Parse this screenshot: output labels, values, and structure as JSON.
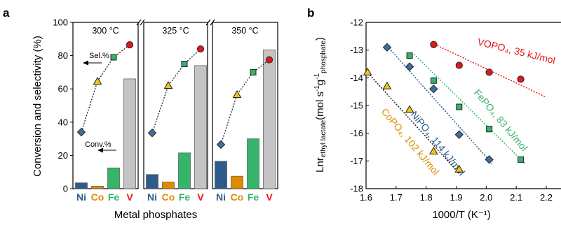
{
  "colors": {
    "Ni": "#2e5c8a",
    "Co": "#e08a00",
    "Fe": "#35b56a",
    "V": "#e8161b",
    "conversion_bar_V": "#c4c4c4",
    "selectivity_marker": "#1b1b1b",
    "ni_marker": "#3c6fa0",
    "co_marker": "#f2c318",
    "fe_marker": "#33b36a",
    "v_marker": "#e3171b",
    "vopo_line": "#e8161b",
    "fepo_line": "#35b56a",
    "nipo_line": "#2e5c8a",
    "copo_line": "#1b1b1b"
  },
  "panel_a": {
    "letter": "a",
    "ylabel": "Conversion and selectivity (%)",
    "xlabel": "Metal phosphates",
    "sel_annotation": "Sel.%",
    "conv_annotation": "Conv.%"
  },
  "panel_b": {
    "letter": "b",
    "xlabel": "1000/T (K⁻¹)"
  },
  "chart_data": [
    {
      "type": "bar",
      "panel": "a",
      "categories": [
        "Ni",
        "Co",
        "Fe",
        "V"
      ],
      "groups": [
        "300 °C",
        "325 °C",
        "350 °C"
      ],
      "ylim": [
        0,
        100
      ],
      "yticks": [
        "0",
        "20",
        "40",
        "60",
        "80",
        "100"
      ],
      "series": [
        {
          "name": "Conv.%",
          "kind": "bar",
          "values": [
            [
              3.5,
              1.5,
              12.5,
              66
            ],
            [
              8.5,
              4,
              21.5,
              74
            ],
            [
              16.5,
              7.5,
              30,
              83.5
            ]
          ]
        },
        {
          "name": "Sel.%",
          "kind": "line-markers",
          "values": [
            [
              34,
              64.5,
              79,
              86.5
            ],
            [
              33.5,
              62,
              75,
              84
            ],
            [
              26.5,
              56.5,
              70,
              77.5
            ]
          ]
        }
      ]
    },
    {
      "type": "scatter",
      "panel": "b",
      "xlim": [
        1.6,
        2.2
      ],
      "ylim": [
        -18,
        -12
      ],
      "xticks": [
        "1.6",
        "1.7",
        "1.8",
        "1.9",
        "2.0",
        "2.1",
        "2.2"
      ],
      "yticks": [
        "-12",
        "-13",
        "-14",
        "-15",
        "-16",
        "-17",
        "-18"
      ],
      "series": [
        {
          "name": "VOPO₄, 35 kJ/mol",
          "marker": "circle",
          "points": [
            [
              1.825,
              -12.8
            ],
            [
              1.91,
              -13.55
            ],
            [
              2.01,
              -13.8
            ],
            [
              2.115,
              -14.05
            ]
          ]
        },
        {
          "name": "FePO₄, 83 kJ/mol",
          "marker": "square",
          "points": [
            [
              1.745,
              -13.2
            ],
            [
              1.825,
              -14.1
            ],
            [
              1.91,
              -15.05
            ],
            [
              2.01,
              -15.85
            ],
            [
              2.115,
              -16.95
            ]
          ]
        },
        {
          "name": "NiPO₄, 114 kJ/mol",
          "marker": "diamond",
          "points": [
            [
              1.67,
              -12.9
            ],
            [
              1.745,
              -13.6
            ],
            [
              1.825,
              -14.4
            ],
            [
              1.91,
              -16.05
            ],
            [
              2.01,
              -16.95
            ]
          ]
        },
        {
          "name": "CoPO₄, 102 kJ/mol",
          "marker": "triangle",
          "points": [
            [
              1.605,
              -13.8
            ],
            [
              1.67,
              -14.3
            ],
            [
              1.745,
              -15.15
            ],
            [
              1.825,
              -16.65
            ],
            [
              1.91,
              -17.3
            ]
          ]
        }
      ]
    }
  ]
}
